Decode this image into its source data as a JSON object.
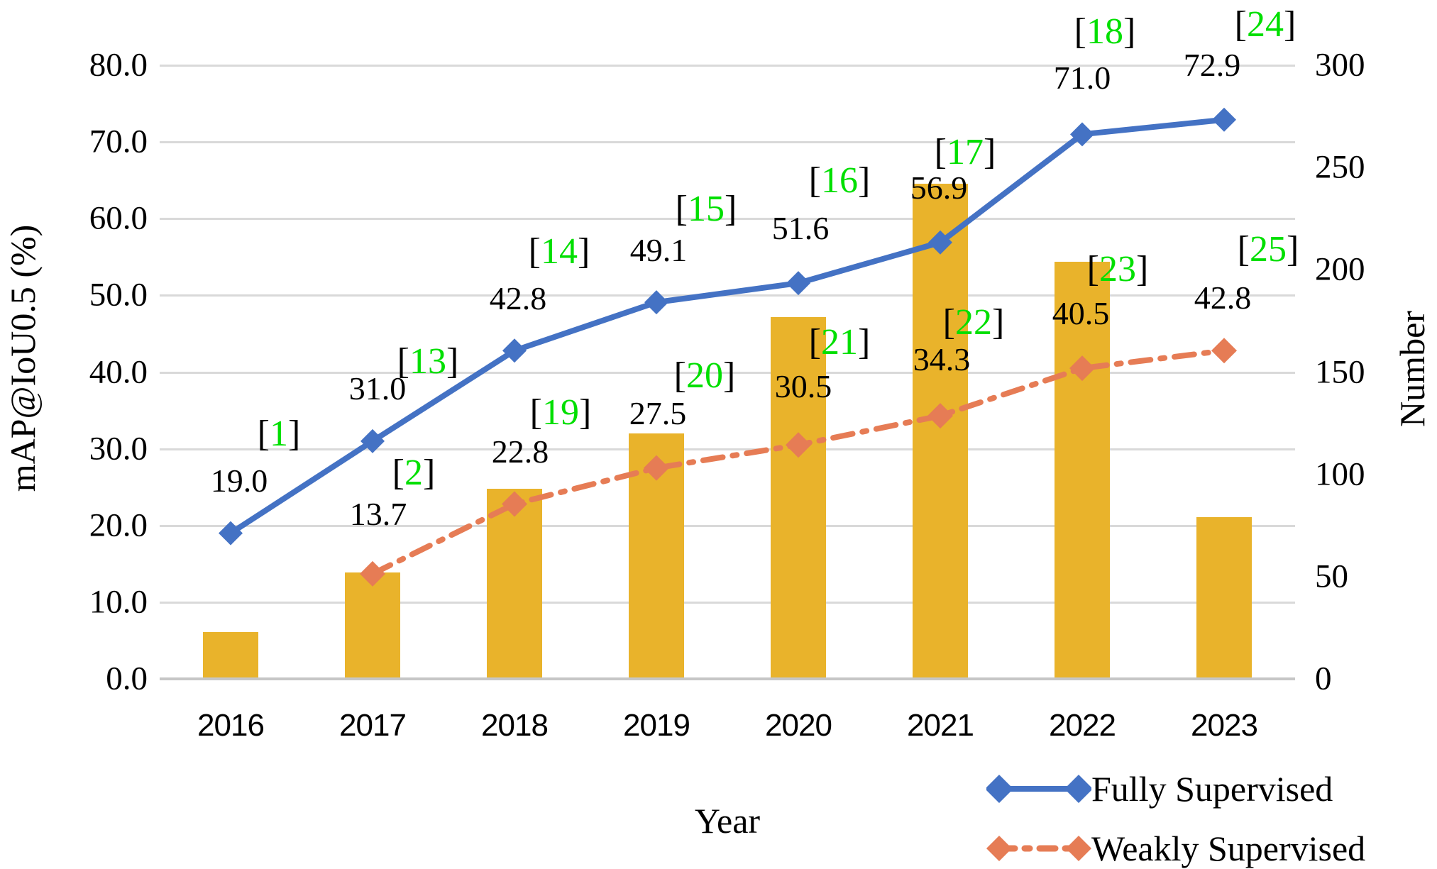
{
  "figure": {
    "left_axis": {
      "title": "mAP@IoU0.5 (%)",
      "ticks": [
        "0.0",
        "10.0",
        "20.0",
        "30.0",
        "40.0",
        "50.0",
        "60.0",
        "70.0",
        "80.0"
      ],
      "min": 0,
      "max": 80,
      "step": 10
    },
    "right_axis": {
      "title": "Number",
      "ticks": [
        "0",
        "50",
        "100",
        "150",
        "200",
        "250",
        "300"
      ],
      "min": 0,
      "max": 300,
      "step": 50
    },
    "x_axis": {
      "title": "Year",
      "categories": [
        "2016",
        "2017",
        "2018",
        "2019",
        "2020",
        "2021",
        "2022",
        "2023"
      ]
    },
    "legend": [
      {
        "label": "Fully Supervised",
        "color": "#4472c4",
        "style": "solid"
      },
      {
        "label": "Weakly Supervised",
        "color": "#e67c55",
        "style": "dash-dot"
      }
    ],
    "brackets": {
      "open": "[",
      "close": "]"
    },
    "colors": {
      "fully_supervised_line": "#4472c4",
      "weakly_supervised_line": "#e67c55",
      "bars": "#e9b32b",
      "citation_number": "#00df00",
      "gridline": "#d9d9d9",
      "axis_line": "#c6c6c6",
      "text": "#000000"
    }
  },
  "chart_data": {
    "type": "combo",
    "x": [
      2016,
      2017,
      2018,
      2019,
      2020,
      2021,
      2022,
      2023
    ],
    "series": [
      {
        "name": "Fully Supervised",
        "type": "line",
        "axis": "left",
        "values": [
          19.0,
          31.0,
          42.8,
          49.1,
          51.6,
          56.9,
          71.0,
          72.9
        ],
        "labels": [
          "19.0",
          "31.0",
          "42.8",
          "49.1",
          "51.6",
          "56.9",
          "71.0",
          "72.9"
        ],
        "refs": [
          "1",
          "13",
          "14",
          "15",
          "16",
          "17",
          "18",
          "24"
        ],
        "color": "#4472c4"
      },
      {
        "name": "Weakly Supervised",
        "type": "line",
        "axis": "left",
        "values": [
          null,
          13.7,
          22.8,
          27.5,
          30.5,
          34.3,
          40.5,
          42.8
        ],
        "labels": [
          null,
          "13.7",
          "22.8",
          "27.5",
          "30.5",
          "34.3",
          "40.5",
          "42.8"
        ],
        "refs": [
          null,
          "2",
          "19",
          "20",
          "21",
          "22",
          "23",
          "25"
        ],
        "color": "#e67c55"
      },
      {
        "name": "Number",
        "type": "bar",
        "axis": "right",
        "values": [
          23,
          52,
          93,
          120,
          177,
          242,
          204,
          79
        ],
        "color": "#e9b32b"
      }
    ],
    "left_axis_range": [
      0,
      80
    ],
    "right_axis_range": [
      0,
      300
    ],
    "grid": true,
    "legend_position": "bottom-right",
    "title": "",
    "xlabel": "Year",
    "ylabel_left": "mAP@IoU0.5 (%)",
    "ylabel_right": "Number"
  }
}
